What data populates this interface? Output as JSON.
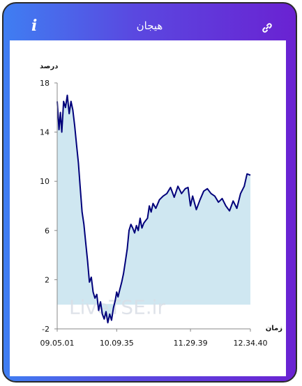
{
  "header": {
    "title": "هیجان",
    "info_icon": "info-icon",
    "info_glyph": "i",
    "link_icon": "link-icon"
  },
  "chart_data": {
    "type": "area",
    "title": "",
    "ylabel": "درصد",
    "xlabel": "زمان",
    "ylim": [
      -2,
      18
    ],
    "yticks": [
      -2,
      2,
      6,
      10,
      14,
      18
    ],
    "xticks": [
      "09.05.01",
      "10.09.35",
      "11.29.39",
      "12.34.40"
    ],
    "watermark": "LiveTSE.ir",
    "colors": {
      "line": "#00007a",
      "fill": "#cfe7f1",
      "axis": "#888888"
    },
    "grid": false,
    "series": [
      {
        "x": [
          "09.05.01",
          "09.07.00",
          "09.08.30",
          "09.10.00",
          "09.12.00",
          "09.14.00",
          "09.16.00",
          "09.18.00",
          "09.20.00",
          "09.22.00",
          "09.24.00",
          "09.26.00",
          "09.28.00",
          "09.30.00",
          "09.32.00",
          "09.34.00",
          "09.36.00",
          "09.38.00",
          "09.40.00",
          "09.42.00",
          "09.44.00",
          "09.46.00",
          "09.48.00",
          "09.50.00",
          "09.52.00",
          "09.54.00",
          "09.56.00",
          "09.58.00",
          "10.00.00",
          "10.02.00",
          "10.04.00",
          "10.06.00",
          "10.08.00",
          "10.09.35",
          "10.11.00",
          "10.13.00",
          "10.15.00",
          "10.17.00",
          "10.19.00",
          "10.21.00",
          "10.23.00",
          "10.25.00",
          "10.27.00",
          "10.29.00",
          "10.31.00",
          "10.33.00",
          "10.35.00",
          "10.37.00",
          "10.39.00",
          "10.41.00",
          "10.43.00",
          "10.45.00",
          "10.47.00",
          "10.49.00",
          "10.52.00",
          "10.56.00",
          "11.00.00",
          "11.04.00",
          "11.08.00",
          "11.12.00",
          "11.16.00",
          "11.20.00",
          "11.24.00",
          "11.27.00",
          "11.29.39",
          "11.32.00",
          "11.36.00",
          "11.40.00",
          "11.44.00",
          "11.48.00",
          "11.52.00",
          "11.56.00",
          "12.00.00",
          "12.04.00",
          "12.08.00",
          "12.12.00",
          "12.16.00",
          "12.20.00",
          "12.24.00",
          "12.28.00",
          "12.31.00",
          "12.34.40"
        ],
        "y": [
          16.5,
          14.2,
          15.6,
          14.0,
          16.5,
          16.0,
          17.0,
          15.5,
          16.5,
          15.8,
          14.5,
          13.0,
          11.5,
          9.5,
          7.5,
          6.5,
          5.0,
          3.5,
          1.8,
          2.2,
          1.0,
          0.5,
          0.8,
          -0.5,
          0.2,
          -0.8,
          -1.2,
          -0.6,
          -1.5,
          -0.8,
          -1.3,
          -0.3,
          0.3,
          1.0,
          0.6,
          1.2,
          1.8,
          2.5,
          3.5,
          4.5,
          6.0,
          6.5,
          6.2,
          5.8,
          6.4,
          6.0,
          7.0,
          6.2,
          6.6,
          6.8,
          7.0,
          8.0,
          7.5,
          8.2,
          7.8,
          8.5,
          8.8,
          9.0,
          9.5,
          8.7,
          9.6,
          9.0,
          9.4,
          9.5,
          8.0,
          8.8,
          7.7,
          8.5,
          9.2,
          9.4,
          9.0,
          8.8,
          8.3,
          8.6,
          8.0,
          7.6,
          8.4,
          7.8,
          9.0,
          9.6,
          10.6,
          10.5
        ]
      }
    ]
  }
}
